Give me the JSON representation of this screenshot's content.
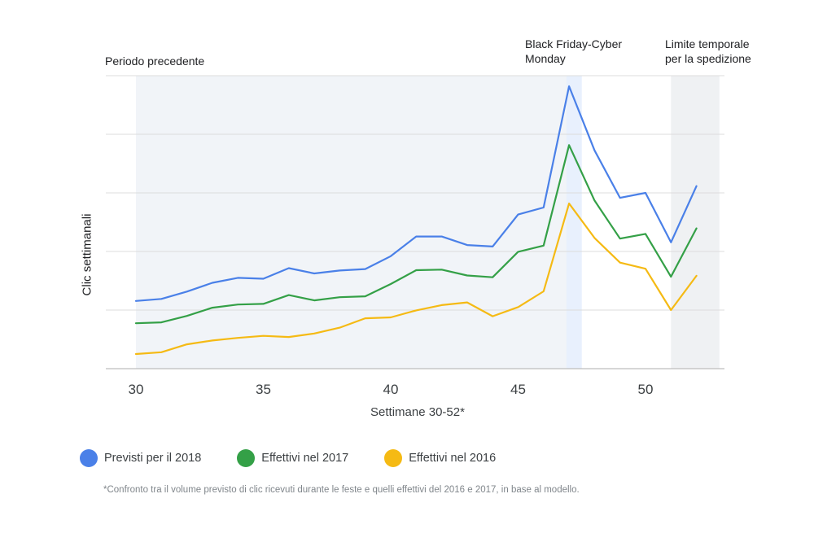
{
  "chart_data": {
    "type": "line",
    "xlabel": "Settimane 30-52*",
    "ylabel": "Clic settimanali",
    "x": [
      30,
      31,
      32,
      33,
      34,
      35,
      36,
      37,
      38,
      39,
      40,
      41,
      42,
      43,
      44,
      45,
      46,
      47,
      48,
      49,
      50,
      51,
      52
    ],
    "xticks": [
      30,
      35,
      40,
      45,
      50
    ],
    "xlim": [
      28.8,
      52.9
    ],
    "ylim": [
      0,
      100
    ],
    "grid": true,
    "series": [
      {
        "name": "Previsti per il 2018",
        "color": "#4a80e8",
        "values": [
          23.1,
          23.8,
          26.3,
          29.3,
          31.0,
          30.7,
          34.3,
          32.5,
          33.5,
          34.0,
          38.4,
          45.1,
          45.1,
          42.2,
          41.7,
          52.6,
          55.0,
          96.4,
          74.5,
          58.3,
          60.0,
          43.1,
          62.3
        ]
      },
      {
        "name": "Effettivi nel 2017",
        "color": "#34a047",
        "values": [
          15.5,
          15.8,
          18.0,
          20.8,
          21.9,
          22.1,
          25.1,
          23.3,
          24.4,
          24.7,
          28.9,
          33.6,
          33.8,
          31.8,
          31.2,
          39.9,
          42.0,
          76.3,
          57.4,
          44.4,
          46.0,
          31.4,
          47.9
        ]
      },
      {
        "name": "Effettivi nel 2016",
        "color": "#f5ba14",
        "values": [
          5.0,
          5.6,
          8.3,
          9.6,
          10.5,
          11.2,
          10.8,
          12.0,
          14.0,
          17.2,
          17.5,
          19.9,
          21.7,
          22.6,
          17.9,
          21.0,
          26.4,
          56.4,
          44.6,
          36.2,
          34.1,
          20.0,
          31.7
        ]
      }
    ],
    "shaded_regions": [
      {
        "label": "Periodo precedente",
        "from": 30,
        "to": 47,
        "color": "#f1f4f8"
      },
      {
        "label": "Black Friday-Cyber Monday",
        "from": 46.9,
        "to": 47.5,
        "color": "#e8f0fd"
      },
      {
        "label": "Limite temporale per la spedizione",
        "from": 51,
        "to": 52.9,
        "color": "#eff1f3"
      }
    ],
    "annotations": {
      "previous_period": "Periodo precedente",
      "black_friday_line1": "Black Friday-Cyber",
      "black_friday_line2": "Monday",
      "shipping_line1": "Limite temporale",
      "shipping_line2": "per la spedizione"
    },
    "footnote": "*Confronto tra il volume previsto di clic ricevuti durante le feste e quelli effettivi del 2016 e 2017, in base al modello."
  }
}
